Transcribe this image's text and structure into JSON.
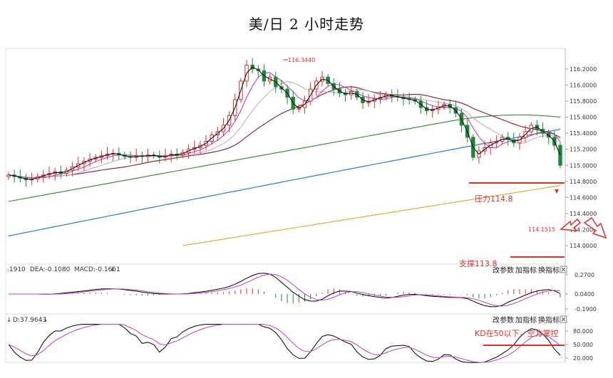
{
  "title": "美/日 2 小时走势",
  "price_axis": [
    "116.2000",
    "116.0000",
    "115.8000",
    "115.6000",
    "115.4000",
    "115.2000",
    "115.0000",
    "114.8000",
    "114.6000",
    "114.4000",
    "114.2000",
    "114.0000"
  ],
  "macd_axis": [
    "0.2700",
    "0.0400",
    "-0.1900"
  ],
  "kd_axis": [
    "80.000",
    "50.000",
    "20.000"
  ],
  "macd_label": {
    "dif": ".1910",
    "dea": "DEA:-0.1080",
    "macd": "MACD:-0.1661"
  },
  "kd_label": {
    "d": "D:37.9643"
  },
  "controls": [
    "改参数",
    "加指标",
    "换指标"
  ],
  "close_icon": "close-icon",
  "annotations": {
    "high": "116.3440",
    "resistance": "压力114.8",
    "support": "支撑113.8",
    "low_marker": "114.1515",
    "kd_note": "KD在50以下，空方掌控"
  },
  "colors": {
    "up": "#e0302a",
    "down": "#1a8a3a",
    "ma_red": "#e04040",
    "ma_purple": "#c040c0",
    "ma_brown": "#8b1a2a",
    "ma_green": "#2a8a2a",
    "ma_blue": "#2a7fd4",
    "ma_orange": "#f0a020",
    "black": "#000"
  },
  "chart_data": {
    "type": "line",
    "title": "美/日 2 小时走势",
    "ylim": [
      113.9,
      116.35
    ],
    "close": [
      114.88,
      114.86,
      114.84,
      114.82,
      114.83,
      114.86,
      114.88,
      114.9,
      114.92,
      114.9,
      114.94,
      114.98,
      115.02,
      115.05,
      115.08,
      115.1,
      115.12,
      115.14,
      115.15,
      115.13,
      115.11,
      115.1,
      115.12,
      115.11,
      115.13,
      115.12,
      115.1,
      115.12,
      115.14,
      115.13,
      115.16,
      115.2,
      115.22,
      115.25,
      115.3,
      115.38,
      115.42,
      115.5,
      115.62,
      115.82,
      116.05,
      116.25,
      116.2,
      116.18,
      116.05,
      116.1,
      115.98,
      115.95,
      115.85,
      115.7,
      115.72,
      115.8,
      115.95,
      116.05,
      116.1,
      116.02,
      115.95,
      115.9,
      115.88,
      115.92,
      115.85,
      115.78,
      115.8,
      115.83,
      115.85,
      115.88,
      115.86,
      115.85,
      115.83,
      115.82,
      115.8,
      115.72,
      115.68,
      115.7,
      115.73,
      115.76,
      115.72,
      115.65,
      115.5,
      115.35,
      115.1,
      115.18,
      115.22,
      115.28,
      115.3,
      115.35,
      115.32,
      115.28,
      115.35,
      115.42,
      115.5,
      115.45,
      115.4,
      115.35,
      115.25,
      115.0
    ],
    "levels": {
      "resistance": 114.8,
      "support": 113.8,
      "high": 116.344,
      "low_marker": 114.1515
    }
  }
}
